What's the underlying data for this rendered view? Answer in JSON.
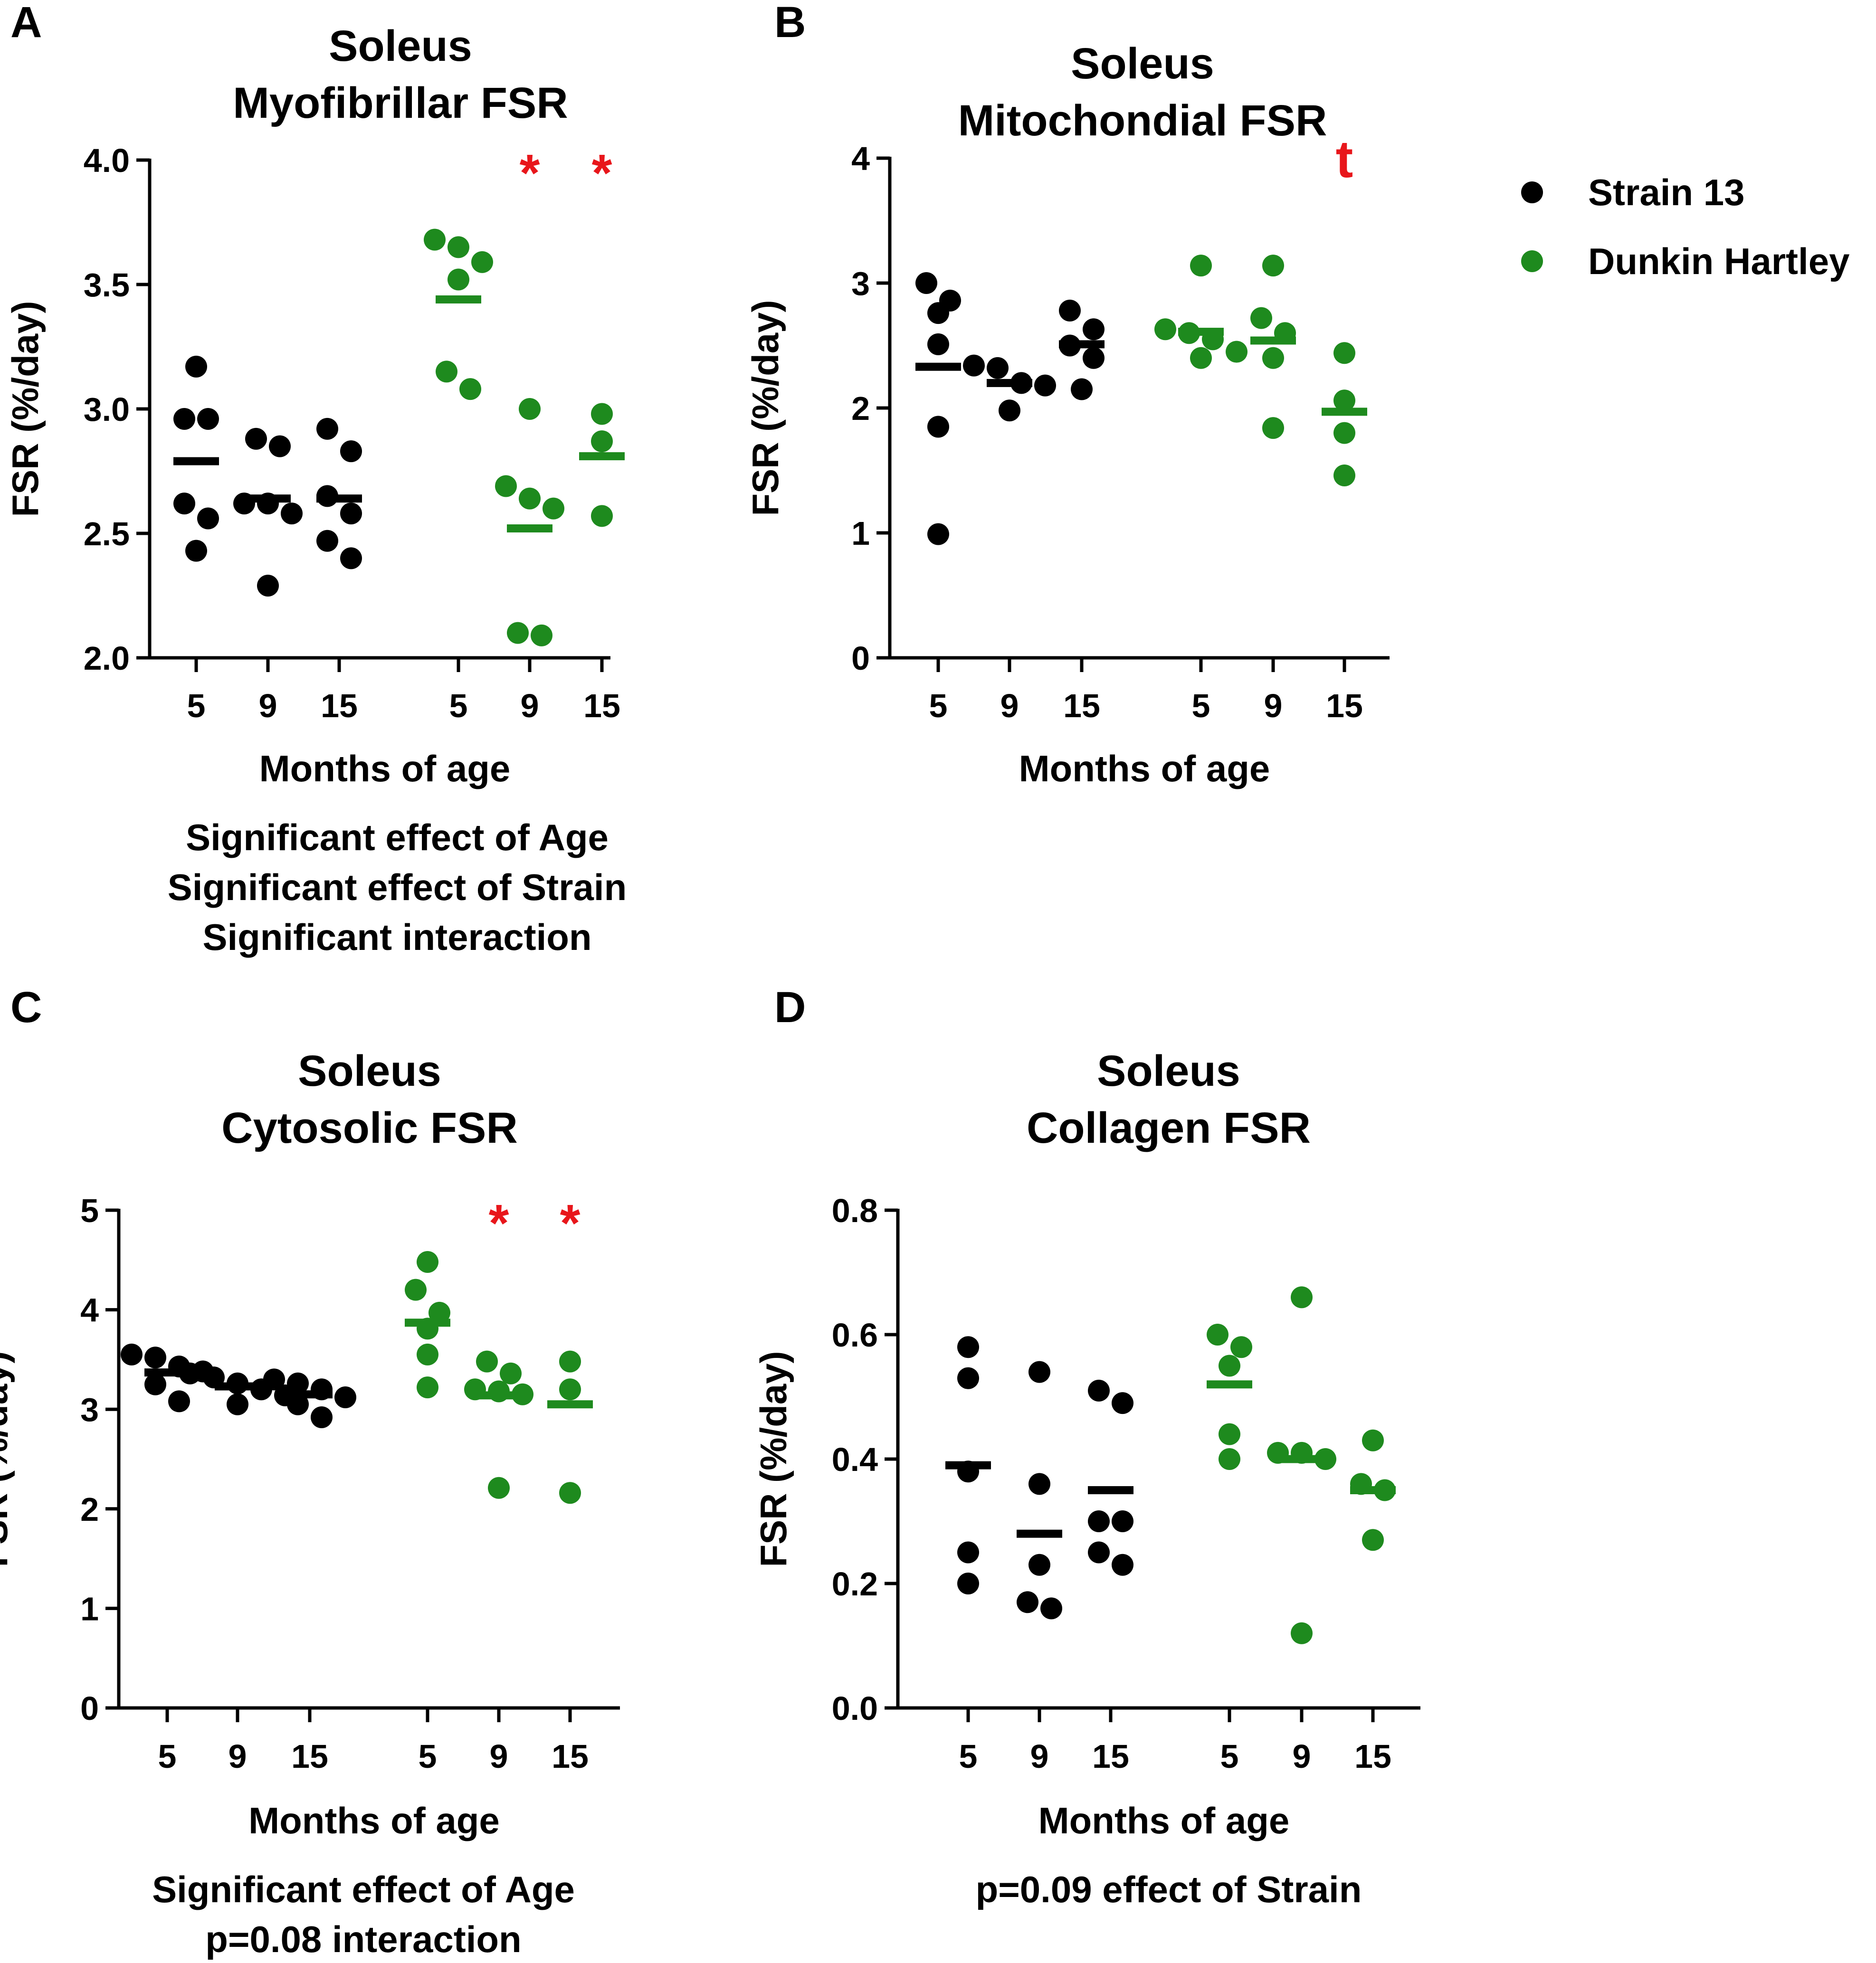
{
  "colors": {
    "strain13": "#000000",
    "dunkin": "#1e8a1e",
    "sig": "#e8161b"
  },
  "legend": {
    "items": [
      {
        "label": "Strain 13",
        "color": "#000000"
      },
      {
        "label": "Dunkin Hartley",
        "color": "#1e8a1e"
      }
    ]
  },
  "chart_data": [
    {
      "id": "A",
      "type": "scatter",
      "panel_label": "A",
      "title_lines": [
        "Soleus",
        "Myofibrillar FSR"
      ],
      "ylabel": "FSR (%/day)",
      "xlabel": "Months of age",
      "ylim": [
        2.0,
        4.0
      ],
      "yticks": [
        2.0,
        2.5,
        3.0,
        3.5,
        4.0
      ],
      "ytick_labels": [
        "2.0",
        "2.5",
        "3.0",
        "3.5",
        "4.0"
      ],
      "notes": [
        "Significant effect of Age",
        "Significant effect of Strain",
        "Significant interaction"
      ],
      "groups": [
        {
          "series": "Strain 13",
          "age": "5",
          "mean": 2.79,
          "points": [
            3.17,
            2.96,
            2.96,
            2.62,
            2.56,
            2.43
          ],
          "sig": ""
        },
        {
          "series": "Strain 13",
          "age": "9",
          "mean": 2.64,
          "points": [
            2.85,
            2.88,
            2.62,
            2.62,
            2.58,
            2.29
          ],
          "sig": ""
        },
        {
          "series": "Strain 13",
          "age": "15",
          "mean": 2.64,
          "points": [
            2.92,
            2.83,
            2.65,
            2.58,
            2.47,
            2.4
          ],
          "sig": ""
        },
        {
          "series": "Dunkin Hartley",
          "age": "5",
          "mean": 3.44,
          "points": [
            3.68,
            3.65,
            3.59,
            3.52,
            3.15,
            3.08
          ],
          "sig": ""
        },
        {
          "series": "Dunkin Hartley",
          "age": "9",
          "mean": 2.52,
          "points": [
            3.0,
            2.69,
            2.64,
            2.6,
            2.1,
            2.09
          ],
          "sig": "*"
        },
        {
          "series": "Dunkin Hartley",
          "age": "15",
          "mean": 2.81,
          "points": [
            2.98,
            2.87,
            2.57
          ],
          "sig": "*"
        }
      ]
    },
    {
      "id": "B",
      "type": "scatter",
      "panel_label": "B",
      "title_lines": [
        "Soleus",
        "Mitochondial FSR"
      ],
      "ylabel": "FSR (%/day)",
      "xlabel": "Months of age",
      "ylim": [
        0,
        4
      ],
      "yticks": [
        0,
        1,
        2,
        3,
        4
      ],
      "ytick_labels": [
        "0",
        "1",
        "2",
        "3",
        "4"
      ],
      "notes": [],
      "groups": [
        {
          "series": "Strain 13",
          "age": "5",
          "mean": 2.33,
          "points": [
            3.0,
            2.86,
            2.76,
            2.51,
            1.85,
            0.99
          ],
          "sig": ""
        },
        {
          "series": "Strain 13",
          "age": "9",
          "mean": 2.2,
          "points": [
            2.34,
            2.32,
            2.2,
            2.18,
            1.98
          ],
          "sig": ""
        },
        {
          "series": "Strain 13",
          "age": "15",
          "mean": 2.51,
          "points": [
            2.78,
            2.63,
            2.5,
            2.4,
            2.15
          ],
          "sig": ""
        },
        {
          "series": "Dunkin Hartley",
          "age": "5",
          "mean": 2.61,
          "points": [
            3.14,
            2.63,
            2.6,
            2.55,
            2.45,
            2.4
          ],
          "sig": ""
        },
        {
          "series": "Dunkin Hartley",
          "age": "9",
          "mean": 2.54,
          "points": [
            3.14,
            2.72,
            2.6,
            2.4,
            1.84
          ],
          "sig": ""
        },
        {
          "series": "Dunkin Hartley",
          "age": "15",
          "mean": 1.97,
          "points": [
            2.44,
            2.06,
            1.8,
            1.46
          ],
          "sig": "t"
        }
      ]
    },
    {
      "id": "C",
      "type": "scatter",
      "panel_label": "C",
      "title_lines": [
        "Soleus",
        "Cytosolic FSR"
      ],
      "ylabel": "FSR (%/day)",
      "xlabel": "Months of age",
      "ylim": [
        0,
        5
      ],
      "yticks": [
        0,
        1,
        2,
        3,
        4,
        5
      ],
      "ytick_labels": [
        "0",
        "1",
        "2",
        "3",
        "4",
        "5"
      ],
      "notes": [
        "Significant effect of Age",
        "p=0.08 interaction"
      ],
      "groups": [
        {
          "series": "Strain 13",
          "age": "5",
          "mean": 3.37,
          "points": [
            3.55,
            3.52,
            3.43,
            3.38,
            3.25,
            3.08
          ],
          "sig": ""
        },
        {
          "series": "Strain 13",
          "age": "9",
          "mean": 3.23,
          "points": [
            3.36,
            3.32,
            3.26,
            3.2,
            3.14,
            3.05
          ],
          "sig": ""
        },
        {
          "series": "Strain 13",
          "age": "15",
          "mean": 3.15,
          "points": [
            3.3,
            3.26,
            3.2,
            3.12,
            3.05,
            2.92
          ],
          "sig": ""
        },
        {
          "series": "Dunkin Hartley",
          "age": "5",
          "mean": 3.87,
          "points": [
            4.48,
            4.2,
            3.97,
            3.81,
            3.55,
            3.22
          ],
          "sig": ""
        },
        {
          "series": "Dunkin Hartley",
          "age": "9",
          "mean": 3.14,
          "points": [
            3.48,
            3.36,
            3.2,
            3.18,
            3.15,
            2.21
          ],
          "sig": "*"
        },
        {
          "series": "Dunkin Hartley",
          "age": "15",
          "mean": 3.05,
          "points": [
            3.48,
            3.2,
            2.16
          ],
          "sig": "*"
        }
      ]
    },
    {
      "id": "D",
      "type": "scatter",
      "panel_label": "D",
      "title_lines": [
        "Soleus",
        "Collagen FSR"
      ],
      "ylabel": "FSR (%/day)",
      "xlabel": "Months of age",
      "ylim": [
        0.0,
        0.8
      ],
      "yticks": [
        0.0,
        0.2,
        0.4,
        0.6,
        0.8
      ],
      "ytick_labels": [
        "0.0",
        "0.2",
        "0.4",
        "0.6",
        "0.8"
      ],
      "notes": [
        "p=0.09 effect of Strain"
      ],
      "groups": [
        {
          "series": "Strain 13",
          "age": "5",
          "mean": 0.39,
          "points": [
            0.58,
            0.53,
            0.38,
            0.25,
            0.2
          ],
          "sig": ""
        },
        {
          "series": "Strain 13",
          "age": "9",
          "mean": 0.28,
          "points": [
            0.54,
            0.36,
            0.23,
            0.17,
            0.16
          ],
          "sig": ""
        },
        {
          "series": "Strain 13",
          "age": "15",
          "mean": 0.35,
          "points": [
            0.51,
            0.49,
            0.3,
            0.3,
            0.25,
            0.23
          ],
          "sig": ""
        },
        {
          "series": "Dunkin Hartley",
          "age": "5",
          "mean": 0.52,
          "points": [
            0.6,
            0.58,
            0.55,
            0.44,
            0.4
          ],
          "sig": ""
        },
        {
          "series": "Dunkin Hartley",
          "age": "9",
          "mean": 0.4,
          "points": [
            0.66,
            0.41,
            0.41,
            0.4,
            0.12
          ],
          "sig": ""
        },
        {
          "series": "Dunkin Hartley",
          "age": "15",
          "mean": 0.35,
          "points": [
            0.43,
            0.36,
            0.35,
            0.27
          ],
          "sig": ""
        }
      ]
    }
  ]
}
